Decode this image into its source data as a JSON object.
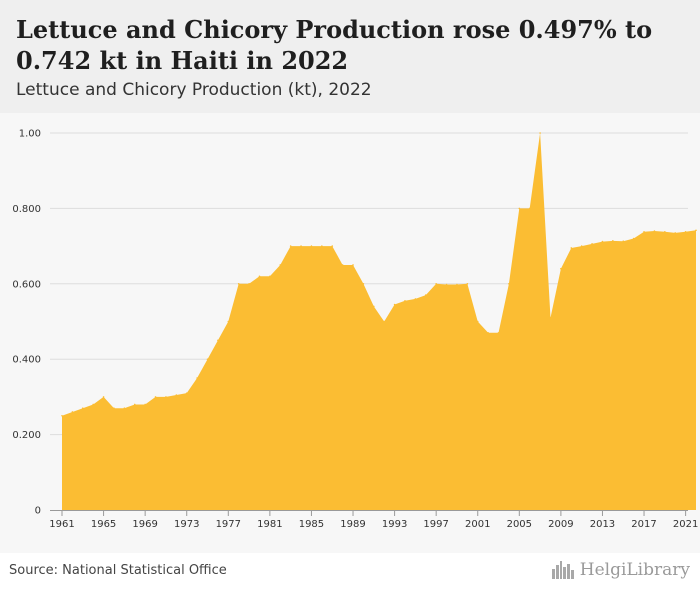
{
  "header": {
    "title": "Lettuce and Chicory Production rose 0.497% to 0.742 kt in Haiti in 2022",
    "subtitle": "Lettuce and Chicory Production (kt), 2022"
  },
  "footer": {
    "source": "Source: National Statistical Office",
    "brand": "HelgiLibrary",
    "brand_icon": "city-skyline-icon"
  },
  "colors": {
    "area_fill": "#fbbd33",
    "header_bg": "#efefef",
    "plot_bg": "#f7f7f7",
    "grid": "#dddddd"
  },
  "chart_data": {
    "type": "area",
    "title": "Lettuce and Chicory Production (kt), 2022",
    "xlabel": "",
    "ylabel": "",
    "x": [
      1961,
      1962,
      1963,
      1964,
      1965,
      1966,
      1967,
      1968,
      1969,
      1970,
      1971,
      1972,
      1973,
      1974,
      1975,
      1976,
      1977,
      1978,
      1979,
      1980,
      1981,
      1982,
      1983,
      1984,
      1985,
      1986,
      1987,
      1988,
      1989,
      1990,
      1991,
      1992,
      1993,
      1994,
      1995,
      1996,
      1997,
      1998,
      1999,
      2000,
      2001,
      2002,
      2003,
      2004,
      2005,
      2006,
      2007,
      2008,
      2009,
      2010,
      2011,
      2012,
      2013,
      2014,
      2015,
      2016,
      2017,
      2018,
      2019,
      2020,
      2021,
      2022
    ],
    "values": [
      0.25,
      0.26,
      0.27,
      0.28,
      0.3,
      0.27,
      0.27,
      0.28,
      0.28,
      0.3,
      0.3,
      0.305,
      0.31,
      0.35,
      0.4,
      0.45,
      0.5,
      0.6,
      0.6,
      0.62,
      0.62,
      0.65,
      0.7,
      0.7,
      0.7,
      0.7,
      0.7,
      0.65,
      0.65,
      0.6,
      0.54,
      0.5,
      0.545,
      0.555,
      0.56,
      0.57,
      0.6,
      0.598,
      0.598,
      0.6,
      0.5,
      0.47,
      0.47,
      0.6,
      0.8,
      0.8,
      1.0,
      0.51,
      0.64,
      0.695,
      0.7,
      0.706,
      0.712,
      0.714,
      0.713,
      0.72,
      0.738,
      0.74,
      0.738,
      0.735,
      0.738,
      0.742
    ],
    "ylim": [
      0,
      1.0
    ],
    "y_ticks": [
      {
        "value": 0,
        "label": "0"
      },
      {
        "value": 0.2,
        "label": "0.200"
      },
      {
        "value": 0.4,
        "label": "0.400"
      },
      {
        "value": 0.6,
        "label": "0.600"
      },
      {
        "value": 0.8,
        "label": "0.800"
      },
      {
        "value": 1.0,
        "label": "1.00"
      }
    ],
    "x_ticks": [
      1961,
      1965,
      1969,
      1973,
      1977,
      1981,
      1985,
      1989,
      1993,
      1997,
      2001,
      2005,
      2009,
      2013,
      2017,
      2021
    ],
    "grid": true,
    "legend": "none"
  }
}
